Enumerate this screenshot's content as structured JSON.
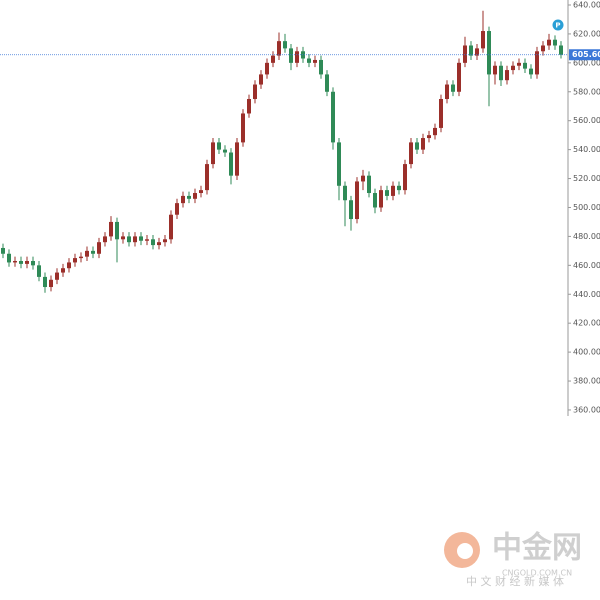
{
  "chart_data": {
    "type": "candlestick",
    "open": [
      472,
      468,
      462,
      463,
      461,
      463,
      460,
      452,
      445,
      450,
      455,
      458,
      462,
      465,
      466,
      470,
      468,
      476,
      480,
      490,
      478,
      480,
      476,
      480,
      477,
      478,
      474,
      476,
      478,
      495,
      503,
      508,
      506,
      510,
      512,
      530,
      545,
      540,
      538,
      522,
      545,
      565,
      575,
      585,
      592,
      600,
      605,
      615,
      610,
      600,
      608,
      603,
      600,
      602,
      592,
      580,
      545,
      515,
      505,
      492,
      518,
      522,
      510,
      500,
      512,
      508,
      515,
      512,
      530,
      545,
      540,
      548,
      550,
      555,
      575,
      585,
      580,
      600,
      612,
      605,
      610,
      622,
      592,
      598,
      588,
      595,
      598,
      600,
      596,
      592,
      608,
      612,
      616,
      612
    ],
    "high": [
      475,
      471,
      466,
      466,
      466,
      466,
      463,
      455,
      453,
      458,
      461,
      465,
      468,
      469,
      473,
      473,
      479,
      483,
      494,
      493,
      483,
      483,
      483,
      483,
      481,
      481,
      479,
      481,
      498,
      506,
      511,
      511,
      513,
      515,
      533,
      548,
      548,
      543,
      541,
      548,
      568,
      578,
      588,
      595,
      603,
      608,
      621,
      620,
      613,
      611,
      611,
      606,
      605,
      605,
      595,
      583,
      548,
      518,
      508,
      521,
      526,
      525,
      513,
      515,
      515,
      518,
      518,
      533,
      548,
      548,
      551,
      553,
      558,
      578,
      588,
      588,
      603,
      618,
      615,
      613,
      636,
      625,
      601,
      601,
      598,
      601,
      603,
      603,
      599,
      611,
      615,
      620,
      619,
      615
    ],
    "low": [
      465,
      459,
      459,
      458,
      458,
      457,
      449,
      441,
      442,
      447,
      452,
      455,
      459,
      462,
      463,
      465,
      465,
      473,
      477,
      462,
      475,
      473,
      473,
      474,
      474,
      471,
      471,
      473,
      475,
      492,
      500,
      503,
      503,
      507,
      509,
      527,
      537,
      535,
      516,
      519,
      542,
      562,
      572,
      582,
      589,
      597,
      602,
      607,
      595,
      597,
      600,
      597,
      597,
      589,
      577,
      540,
      505,
      487,
      484,
      489,
      512,
      507,
      496,
      497,
      505,
      505,
      509,
      509,
      527,
      537,
      537,
      545,
      547,
      552,
      572,
      577,
      577,
      597,
      602,
      602,
      607,
      570,
      585,
      584,
      585,
      592,
      595,
      593,
      589,
      589,
      605,
      609,
      609,
      603
    ],
    "close": [
      468,
      462,
      463,
      461,
      463,
      460,
      452,
      445,
      450,
      455,
      458,
      462,
      465,
      466,
      470,
      468,
      476,
      480,
      490,
      478,
      480,
      476,
      480,
      477,
      478,
      474,
      476,
      478,
      495,
      503,
      508,
      506,
      510,
      512,
      530,
      545,
      540,
      538,
      522,
      545,
      565,
      575,
      585,
      592,
      600,
      605,
      615,
      610,
      600,
      608,
      603,
      600,
      602,
      592,
      580,
      545,
      515,
      505,
      492,
      518,
      522,
      510,
      500,
      512,
      508,
      515,
      512,
      530,
      545,
      540,
      548,
      550,
      555,
      575,
      585,
      580,
      600,
      612,
      605,
      610,
      622,
      592,
      598,
      588,
      595,
      598,
      600,
      596,
      592,
      608,
      612,
      616,
      612,
      605.6
    ],
    "up_color": "#9b2f2a",
    "down_color": "#2f8a57",
    "ylim": [
      357,
      642
    ],
    "yticks": [
      {
        "value": 360,
        "label": "360.00"
      },
      {
        "value": 380,
        "label": "380.00"
      },
      {
        "value": 400,
        "label": "400.00"
      },
      {
        "value": 420,
        "label": "420.00"
      },
      {
        "value": 440,
        "label": "440.00"
      },
      {
        "value": 460,
        "label": "460.00"
      },
      {
        "value": 480,
        "label": "480.00"
      },
      {
        "value": 500,
        "label": "500.00"
      },
      {
        "value": 520,
        "label": "520.00"
      },
      {
        "value": 540,
        "label": "540.00"
      },
      {
        "value": 560,
        "label": "560.00"
      },
      {
        "value": 580,
        "label": "580.00"
      },
      {
        "value": 600,
        "label": "600.00"
      },
      {
        "value": 620,
        "label": "620.00"
      },
      {
        "value": 640,
        "label": "640.00"
      }
    ],
    "last_price": {
      "value": 605.6,
      "label": "605.60",
      "color": "#3c78d8"
    },
    "marker": "P",
    "watermark": {
      "title": "中金网",
      "site": "CNGOLD.COM.CN",
      "slogan": "中 文 财 经 新 媒 体"
    }
  }
}
